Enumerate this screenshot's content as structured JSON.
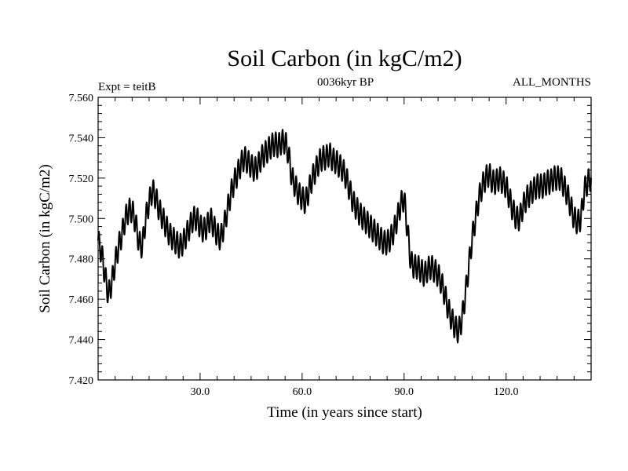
{
  "chart_data": {
    "type": "line",
    "title": "Soil Carbon (in kgC/m2)",
    "subtitle_left": "Expt = teitB",
    "subtitle_center": "0036kyr BP",
    "subtitle_right": "ALL_MONTHS",
    "xlabel": "Time (in years since start)",
    "ylabel": "Soil Carbon (in kgC/m2)",
    "xlim": [
      0,
      145
    ],
    "ylim": [
      7.42,
      7.56
    ],
    "xticks": [
      30,
      60,
      90,
      120
    ],
    "xtick_labels": [
      "30.0",
      "60.0",
      "90.0",
      "120.0"
    ],
    "yticks": [
      7.42,
      7.44,
      7.46,
      7.48,
      7.5,
      7.52,
      7.54,
      7.56
    ],
    "ytick_labels": [
      "7.420",
      "7.440",
      "7.460",
      "7.480",
      "7.500",
      "7.520",
      "7.540",
      "7.560"
    ],
    "seasonal_amplitude": 0.006,
    "series": [
      {
        "name": "Soil Carbon",
        "x": [
          0,
          1,
          2,
          3,
          4,
          5,
          6,
          7,
          8,
          9,
          10,
          11,
          12,
          13,
          14,
          15,
          16,
          17,
          18,
          19,
          20,
          21,
          22,
          23,
          24,
          25,
          26,
          27,
          28,
          29,
          30,
          31,
          32,
          33,
          34,
          35,
          36,
          37,
          38,
          39,
          40,
          41,
          42,
          43,
          44,
          45,
          46,
          47,
          48,
          49,
          50,
          51,
          52,
          53,
          54,
          55,
          56,
          57,
          58,
          59,
          60,
          61,
          62,
          63,
          64,
          65,
          66,
          67,
          68,
          69,
          70,
          71,
          72,
          73,
          74,
          75,
          76,
          77,
          78,
          79,
          80,
          81,
          82,
          83,
          84,
          85,
          86,
          87,
          88,
          89,
          90,
          91,
          92,
          93,
          94,
          95,
          96,
          97,
          98,
          99,
          100,
          101,
          102,
          103,
          104,
          105,
          106,
          107,
          108,
          109,
          110,
          111,
          112,
          113,
          114,
          115,
          116,
          117,
          118,
          119,
          120,
          121,
          122,
          123,
          124,
          125,
          126,
          127,
          128,
          129,
          130,
          131,
          132,
          133,
          134,
          135,
          136,
          137,
          138,
          139,
          140,
          141,
          142,
          143,
          144,
          145
        ],
        "y": [
          7.489,
          7.483,
          7.472,
          7.462,
          7.468,
          7.478,
          7.486,
          7.492,
          7.5,
          7.504,
          7.504,
          7.498,
          7.488,
          7.486,
          7.5,
          7.508,
          7.514,
          7.51,
          7.504,
          7.5,
          7.496,
          7.492,
          7.49,
          7.488,
          7.486,
          7.488,
          7.492,
          7.496,
          7.5,
          7.5,
          7.496,
          7.494,
          7.496,
          7.5,
          7.496,
          7.492,
          7.49,
          7.496,
          7.504,
          7.512,
          7.518,
          7.522,
          7.527,
          7.53,
          7.528,
          7.526,
          7.524,
          7.526,
          7.53,
          7.532,
          7.534,
          7.536,
          7.537,
          7.536,
          7.538,
          7.538,
          7.532,
          7.52,
          7.516,
          7.512,
          7.51,
          7.508,
          7.514,
          7.52,
          7.524,
          7.528,
          7.53,
          7.53,
          7.532,
          7.529,
          7.528,
          7.526,
          7.524,
          7.52,
          7.514,
          7.508,
          7.505,
          7.502,
          7.5,
          7.498,
          7.496,
          7.494,
          7.492,
          7.49,
          7.488,
          7.488,
          7.49,
          7.494,
          7.5,
          7.507,
          7.51,
          7.494,
          7.478,
          7.476,
          7.476,
          7.474,
          7.472,
          7.475,
          7.476,
          7.474,
          7.472,
          7.468,
          7.462,
          7.455,
          7.45,
          7.446,
          7.444,
          7.45,
          7.462,
          7.476,
          7.49,
          7.5,
          7.51,
          7.516,
          7.52,
          7.522,
          7.518,
          7.518,
          7.52,
          7.518,
          7.516,
          7.51,
          7.504,
          7.5,
          7.5,
          7.506,
          7.51,
          7.512,
          7.514,
          7.516,
          7.516,
          7.516,
          7.518,
          7.518,
          7.52,
          7.52,
          7.52,
          7.516,
          7.512,
          7.506,
          7.5,
          7.498,
          7.5,
          7.514,
          7.518,
          7.52
        ]
      }
    ]
  }
}
